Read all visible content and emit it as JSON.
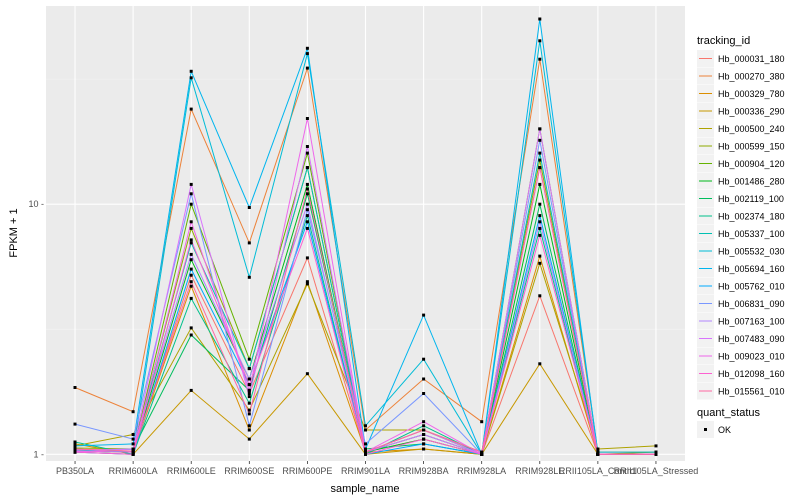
{
  "chart_data": {
    "type": "line",
    "xlabel": "sample_name",
    "ylabel": "FPKM + 1",
    "y_scale": "log10",
    "ylim": [
      0.94,
      62
    ],
    "y_ticks": [
      1,
      10
    ],
    "y_tick_labels": [
      "1 -",
      "10 -"
    ],
    "grid": true,
    "legend_position": "right",
    "categories": [
      "PB350LA",
      "RRIM600LA",
      "RRIM600LE",
      "RRIM600SE",
      "RRIM600PE",
      "RRIM901LA",
      "RRIM928BA",
      "RRIM928LA",
      "RRIM928LE",
      "RRII105LA_Control",
      "RRII105LA_Stressed"
    ],
    "x_tick_labels": [
      "PB350LA",
      "RRIM600LA",
      "RRIM600LE",
      "RRIM600SE",
      "RRIM600PE",
      "RRIM901LA",
      "RRIM928BA",
      "RRIM928LA",
      "RRIM928LE",
      "RRII105LA_Control",
      "RRII105LA_Stressed"
    ],
    "legend_title": "tracking_id",
    "series": [
      {
        "name": "Hb_000031_180",
        "color": "#F8766D",
        "values": [
          1.02,
          1.0,
          5.2,
          1.75,
          6.1,
          1.02,
          1.15,
          1.0,
          4.3,
          1.0,
          1.0
        ]
      },
      {
        "name": "Hb_000270_380",
        "color": "#EC8239",
        "values": [
          1.85,
          1.48,
          24.0,
          7.0,
          35.0,
          1.25,
          2.0,
          1.35,
          38.0,
          1.02,
          1.02
        ]
      },
      {
        "name": "Hb_000329_780",
        "color": "#DB8E00",
        "values": [
          1.05,
          1.02,
          4.7,
          1.25,
          4.9,
          1.02,
          1.05,
          1.0,
          6.2,
          1.0,
          1.0
        ]
      },
      {
        "name": "Hb_000336_290",
        "color": "#C79800",
        "values": [
          1.1,
          1.0,
          1.8,
          1.15,
          2.1,
          1.0,
          1.05,
          1.0,
          2.3,
          1.0,
          1.0
        ]
      },
      {
        "name": "Hb_000500_240",
        "color": "#AEA200",
        "values": [
          1.08,
          1.2,
          3.2,
          1.5,
          4.8,
          1.25,
          1.25,
          1.0,
          5.8,
          1.05,
          1.08
        ]
      },
      {
        "name": "Hb_000599_150",
        "color": "#8FAA00",
        "values": [
          1.06,
          1.05,
          8.0,
          2.2,
          14.0,
          1.02,
          1.25,
          1.02,
          15.0,
          1.0,
          1.02
        ]
      },
      {
        "name": "Hb_000904_120",
        "color": "#64B200",
        "values": [
          1.03,
          1.02,
          10.0,
          2.4,
          16.0,
          1.02,
          1.2,
          1.0,
          20.0,
          1.0,
          1.0
        ]
      },
      {
        "name": "Hb_001486_280",
        "color": "#00B81B",
        "values": [
          1.04,
          1.02,
          6.0,
          2.0,
          12.0,
          1.02,
          1.15,
          1.0,
          12.0,
          1.0,
          1.0
        ]
      },
      {
        "name": "Hb_002119_100",
        "color": "#00BD5C",
        "values": [
          1.02,
          1.05,
          3.0,
          1.8,
          11.0,
          1.05,
          1.1,
          1.0,
          10.0,
          1.0,
          1.0
        ]
      },
      {
        "name": "Hb_002374_180",
        "color": "#00C08B",
        "values": [
          1.12,
          1.0,
          4.2,
          1.6,
          9.0,
          1.0,
          1.3,
          1.0,
          8.0,
          1.0,
          1.0
        ]
      },
      {
        "name": "Hb_005337_100",
        "color": "#00C0B2",
        "values": [
          1.03,
          1.05,
          7.0,
          2.2,
          14.0,
          1.02,
          1.2,
          1.0,
          16.0,
          1.0,
          1.0
        ]
      },
      {
        "name": "Hb_005532_030",
        "color": "#00BCD6",
        "values": [
          1.05,
          1.02,
          32.0,
          5.1,
          40.0,
          1.3,
          2.4,
          1.0,
          45.0,
          1.02,
          1.02
        ]
      },
      {
        "name": "Hb_005694_160",
        "color": "#00B5EE",
        "values": [
          1.08,
          1.1,
          34.0,
          9.7,
          42.0,
          1.05,
          3.6,
          1.0,
          55.0,
          1.0,
          1.0
        ]
      },
      {
        "name": "Hb_005762_010",
        "color": "#00A9FF",
        "values": [
          1.02,
          1.0,
          5.5,
          1.9,
          8.5,
          1.0,
          1.1,
          1.0,
          9.0,
          1.0,
          1.0
        ]
      },
      {
        "name": "Hb_006831_090",
        "color": "#7997FF",
        "values": [
          1.32,
          1.15,
          11.0,
          1.3,
          9.5,
          1.1,
          1.75,
          1.0,
          18.0,
          1.0,
          1.0
        ]
      },
      {
        "name": "Hb_007163_100",
        "color": "#B385FF",
        "values": [
          1.04,
          1.05,
          6.3,
          2.0,
          10.0,
          1.02,
          1.25,
          1.0,
          8.5,
          1.0,
          1.0
        ]
      },
      {
        "name": "Hb_007483_090",
        "color": "#D874FD",
        "values": [
          1.02,
          1.05,
          12.0,
          1.7,
          17.0,
          1.02,
          1.2,
          1.0,
          20.0,
          1.0,
          1.0
        ]
      },
      {
        "name": "Hb_009023_010",
        "color": "#EF67EB",
        "values": [
          1.03,
          1.02,
          8.5,
          1.8,
          22.0,
          1.02,
          1.35,
          1.0,
          14.0,
          1.0,
          1.0
        ]
      },
      {
        "name": "Hb_012098_160",
        "color": "#FD61D1",
        "values": [
          1.02,
          1.0,
          7.2,
          1.9,
          8.0,
          1.0,
          1.15,
          1.0,
          7.5,
          1.0,
          1.0
        ]
      },
      {
        "name": "Hb_015561_010",
        "color": "#FF68A1",
        "values": [
          1.05,
          1.03,
          4.9,
          1.45,
          11.5,
          1.02,
          1.25,
          1.02,
          14.0,
          1.0,
          1.0
        ]
      }
    ],
    "shape_legend": {
      "title": "quant_status",
      "items": [
        "OK"
      ]
    }
  }
}
